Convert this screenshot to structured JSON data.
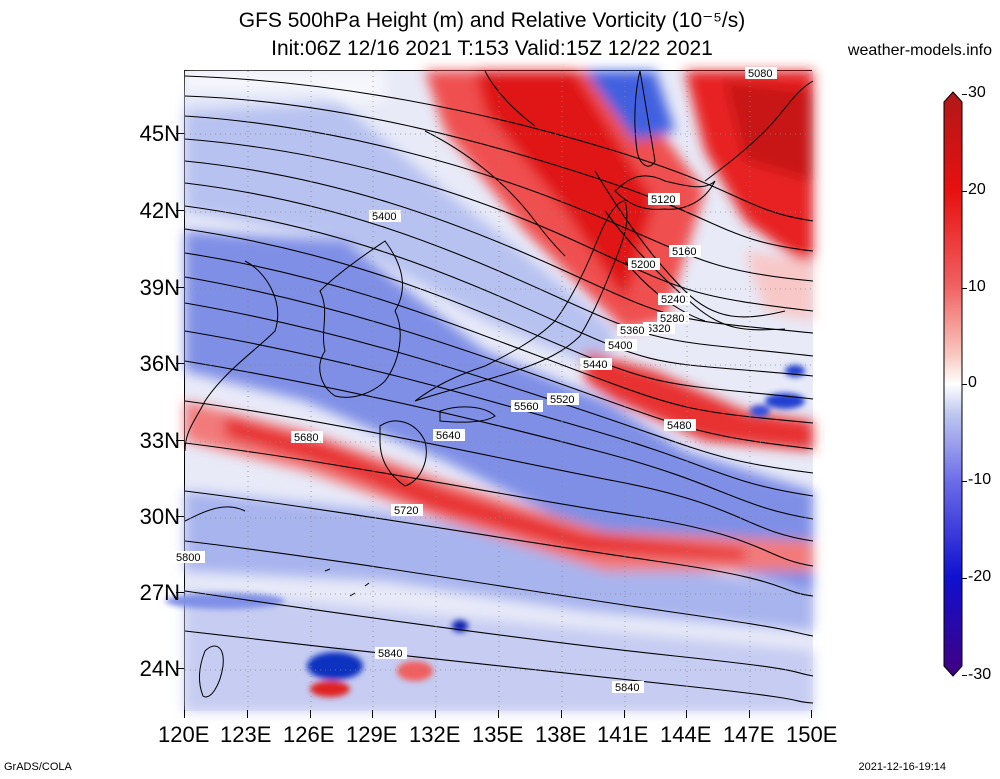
{
  "header": {
    "title_line1": "GFS 500hPa Height (m) and Relative Vorticity (10⁻⁵/s)",
    "title_line2": "Init:06Z 12/16 2021 T:153 Valid:15Z 12/22 2021",
    "site": "weather-models.info"
  },
  "axes": {
    "lat_labels": [
      "45N",
      "42N",
      "39N",
      "36N",
      "33N",
      "30N",
      "27N",
      "24N"
    ],
    "lon_labels": [
      "120E",
      "123E",
      "126E",
      "129E",
      "132E",
      "135E",
      "138E",
      "141E",
      "144E",
      "147E",
      "150E"
    ]
  },
  "colorbar": {
    "labels": [
      "30",
      "20",
      "10",
      "0",
      "-10",
      "-20",
      "-30"
    ],
    "colors": [
      "#400080",
      "#1010d0",
      "#6a6ae8",
      "#c0c8f0",
      "#ffffff",
      "#f8c8c0",
      "#f06060",
      "#e81010",
      "#b01818"
    ]
  },
  "contours": {
    "labels": [
      "5080",
      "5120",
      "5160",
      "5200",
      "5240",
      "5280",
      "5320",
      "5360",
      "5400",
      "5440",
      "5480",
      "5520",
      "5560",
      "5400",
      "5640",
      "5680",
      "5720",
      "5800",
      "5840",
      "5840"
    ]
  },
  "footer": {
    "left": "GrADS/COLA",
    "right": "2021-12-16-19:14"
  }
}
